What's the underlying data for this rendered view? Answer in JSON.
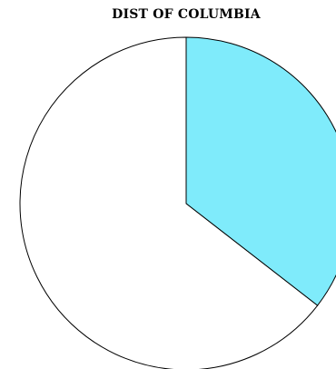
{
  "chart_data": {
    "type": "pie",
    "title": "DIST OF COLUMBIA",
    "slices": [
      {
        "label": "",
        "value": 35.5,
        "color": "#7FEBFB"
      },
      {
        "label": "",
        "value": 64.5,
        "color": "#FFFFFF"
      }
    ],
    "start_angle_deg": 0,
    "direction": "clockwise",
    "stroke_color": "#000000",
    "legend": "none"
  }
}
